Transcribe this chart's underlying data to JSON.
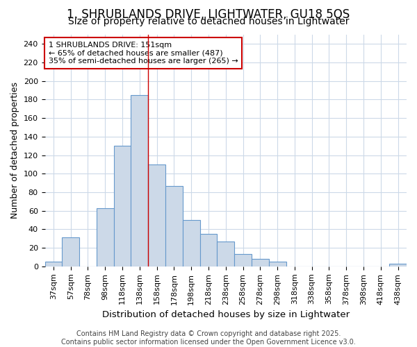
{
  "title1": "1, SHRUBLANDS DRIVE, LIGHTWATER, GU18 5QS",
  "title2": "Size of property relative to detached houses in Lightwater",
  "xlabel": "Distribution of detached houses by size in Lightwater",
  "ylabel": "Number of detached properties",
  "categories": [
    "37sqm",
    "57sqm",
    "78sqm",
    "98sqm",
    "118sqm",
    "138sqm",
    "158sqm",
    "178sqm",
    "198sqm",
    "218sqm",
    "238sqm",
    "258sqm",
    "278sqm",
    "298sqm",
    "318sqm",
    "338sqm",
    "358sqm",
    "378sqm",
    "398sqm",
    "418sqm",
    "438sqm"
  ],
  "values": [
    5,
    31,
    0,
    63,
    130,
    185,
    110,
    87,
    50,
    35,
    27,
    13,
    8,
    5,
    0,
    0,
    0,
    0,
    0,
    0,
    3
  ],
  "bar_color": "#ccd9e8",
  "bar_edge_color": "#6699cc",
  "bar_edge_width": 0.8,
  "red_line_x": 5.5,
  "red_line_color": "#cc0000",
  "annotation_box_text": "1 SHRUBLANDS DRIVE: 151sqm\n← 65% of detached houses are smaller (487)\n35% of semi-detached houses are larger (265) →",
  "ylim": [
    0,
    250
  ],
  "yticks": [
    0,
    20,
    40,
    60,
    80,
    100,
    120,
    140,
    160,
    180,
    200,
    220,
    240
  ],
  "background_color": "#ffffff",
  "plot_bg_color": "#ffffff",
  "grid_color": "#ccd9e8",
  "footer": "Contains HM Land Registry data © Crown copyright and database right 2025.\nContains public sector information licensed under the Open Government Licence v3.0.",
  "title_fontsize": 12,
  "subtitle_fontsize": 10,
  "xlabel_fontsize": 9.5,
  "ylabel_fontsize": 9,
  "footer_fontsize": 7,
  "tick_fontsize": 8,
  "ann_fontsize": 8
}
